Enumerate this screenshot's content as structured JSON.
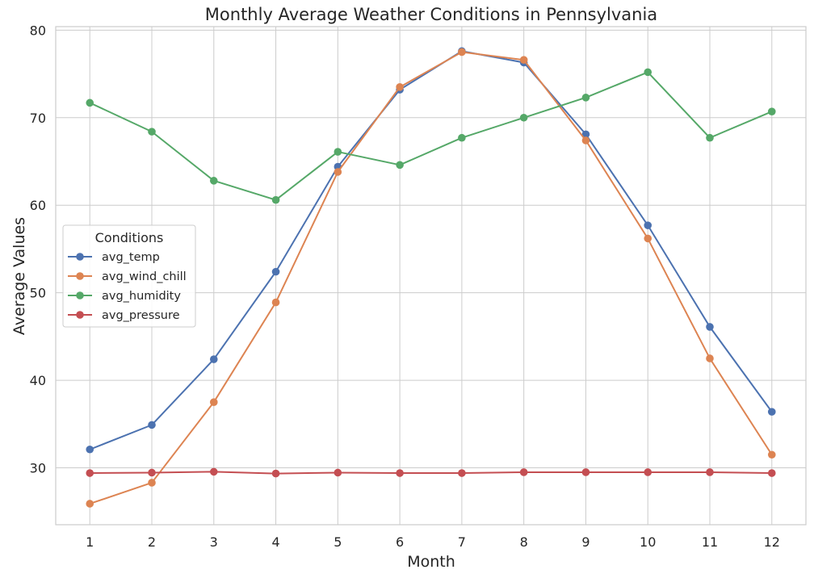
{
  "chart_data": {
    "type": "line",
    "title": "Monthly Average Weather Conditions in Pennsylvania",
    "xlabel": "Month",
    "ylabel": "Average Values",
    "x": [
      1,
      2,
      3,
      4,
      5,
      6,
      7,
      8,
      9,
      10,
      11,
      12
    ],
    "x_tick_labels": [
      "1",
      "2",
      "3",
      "4",
      "5",
      "6",
      "7",
      "8",
      "9",
      "10",
      "11",
      "12"
    ],
    "y_ticks": [
      30,
      40,
      50,
      60,
      70,
      80
    ],
    "y_tick_labels": [
      "30",
      "40",
      "50",
      "60",
      "70",
      "80"
    ],
    "xlim": [
      0.45,
      12.55
    ],
    "ylim": [
      23.5,
      80.4
    ],
    "grid": true,
    "legend": {
      "title": "Conditions",
      "placement": "center-left"
    },
    "series": [
      {
        "name": "avg_temp",
        "color": "#4c72b0",
        "values": [
          32.1,
          34.9,
          42.4,
          52.4,
          64.4,
          73.2,
          77.6,
          76.3,
          68.1,
          57.7,
          46.1,
          36.4
        ]
      },
      {
        "name": "avg_wind_chill",
        "color": "#dd8452",
        "values": [
          25.9,
          28.3,
          37.5,
          48.9,
          63.8,
          73.5,
          77.5,
          76.6,
          67.4,
          56.2,
          42.5,
          31.5
        ]
      },
      {
        "name": "avg_humidity",
        "color": "#55a868",
        "values": [
          71.7,
          68.4,
          62.8,
          60.6,
          66.1,
          64.6,
          67.7,
          70.0,
          72.3,
          75.2,
          67.7,
          70.7
        ]
      },
      {
        "name": "avg_pressure",
        "color": "#c44e52",
        "values": [
          29.4,
          29.45,
          29.55,
          29.35,
          29.45,
          29.4,
          29.4,
          29.5,
          29.5,
          29.5,
          29.5,
          29.4
        ]
      }
    ]
  }
}
